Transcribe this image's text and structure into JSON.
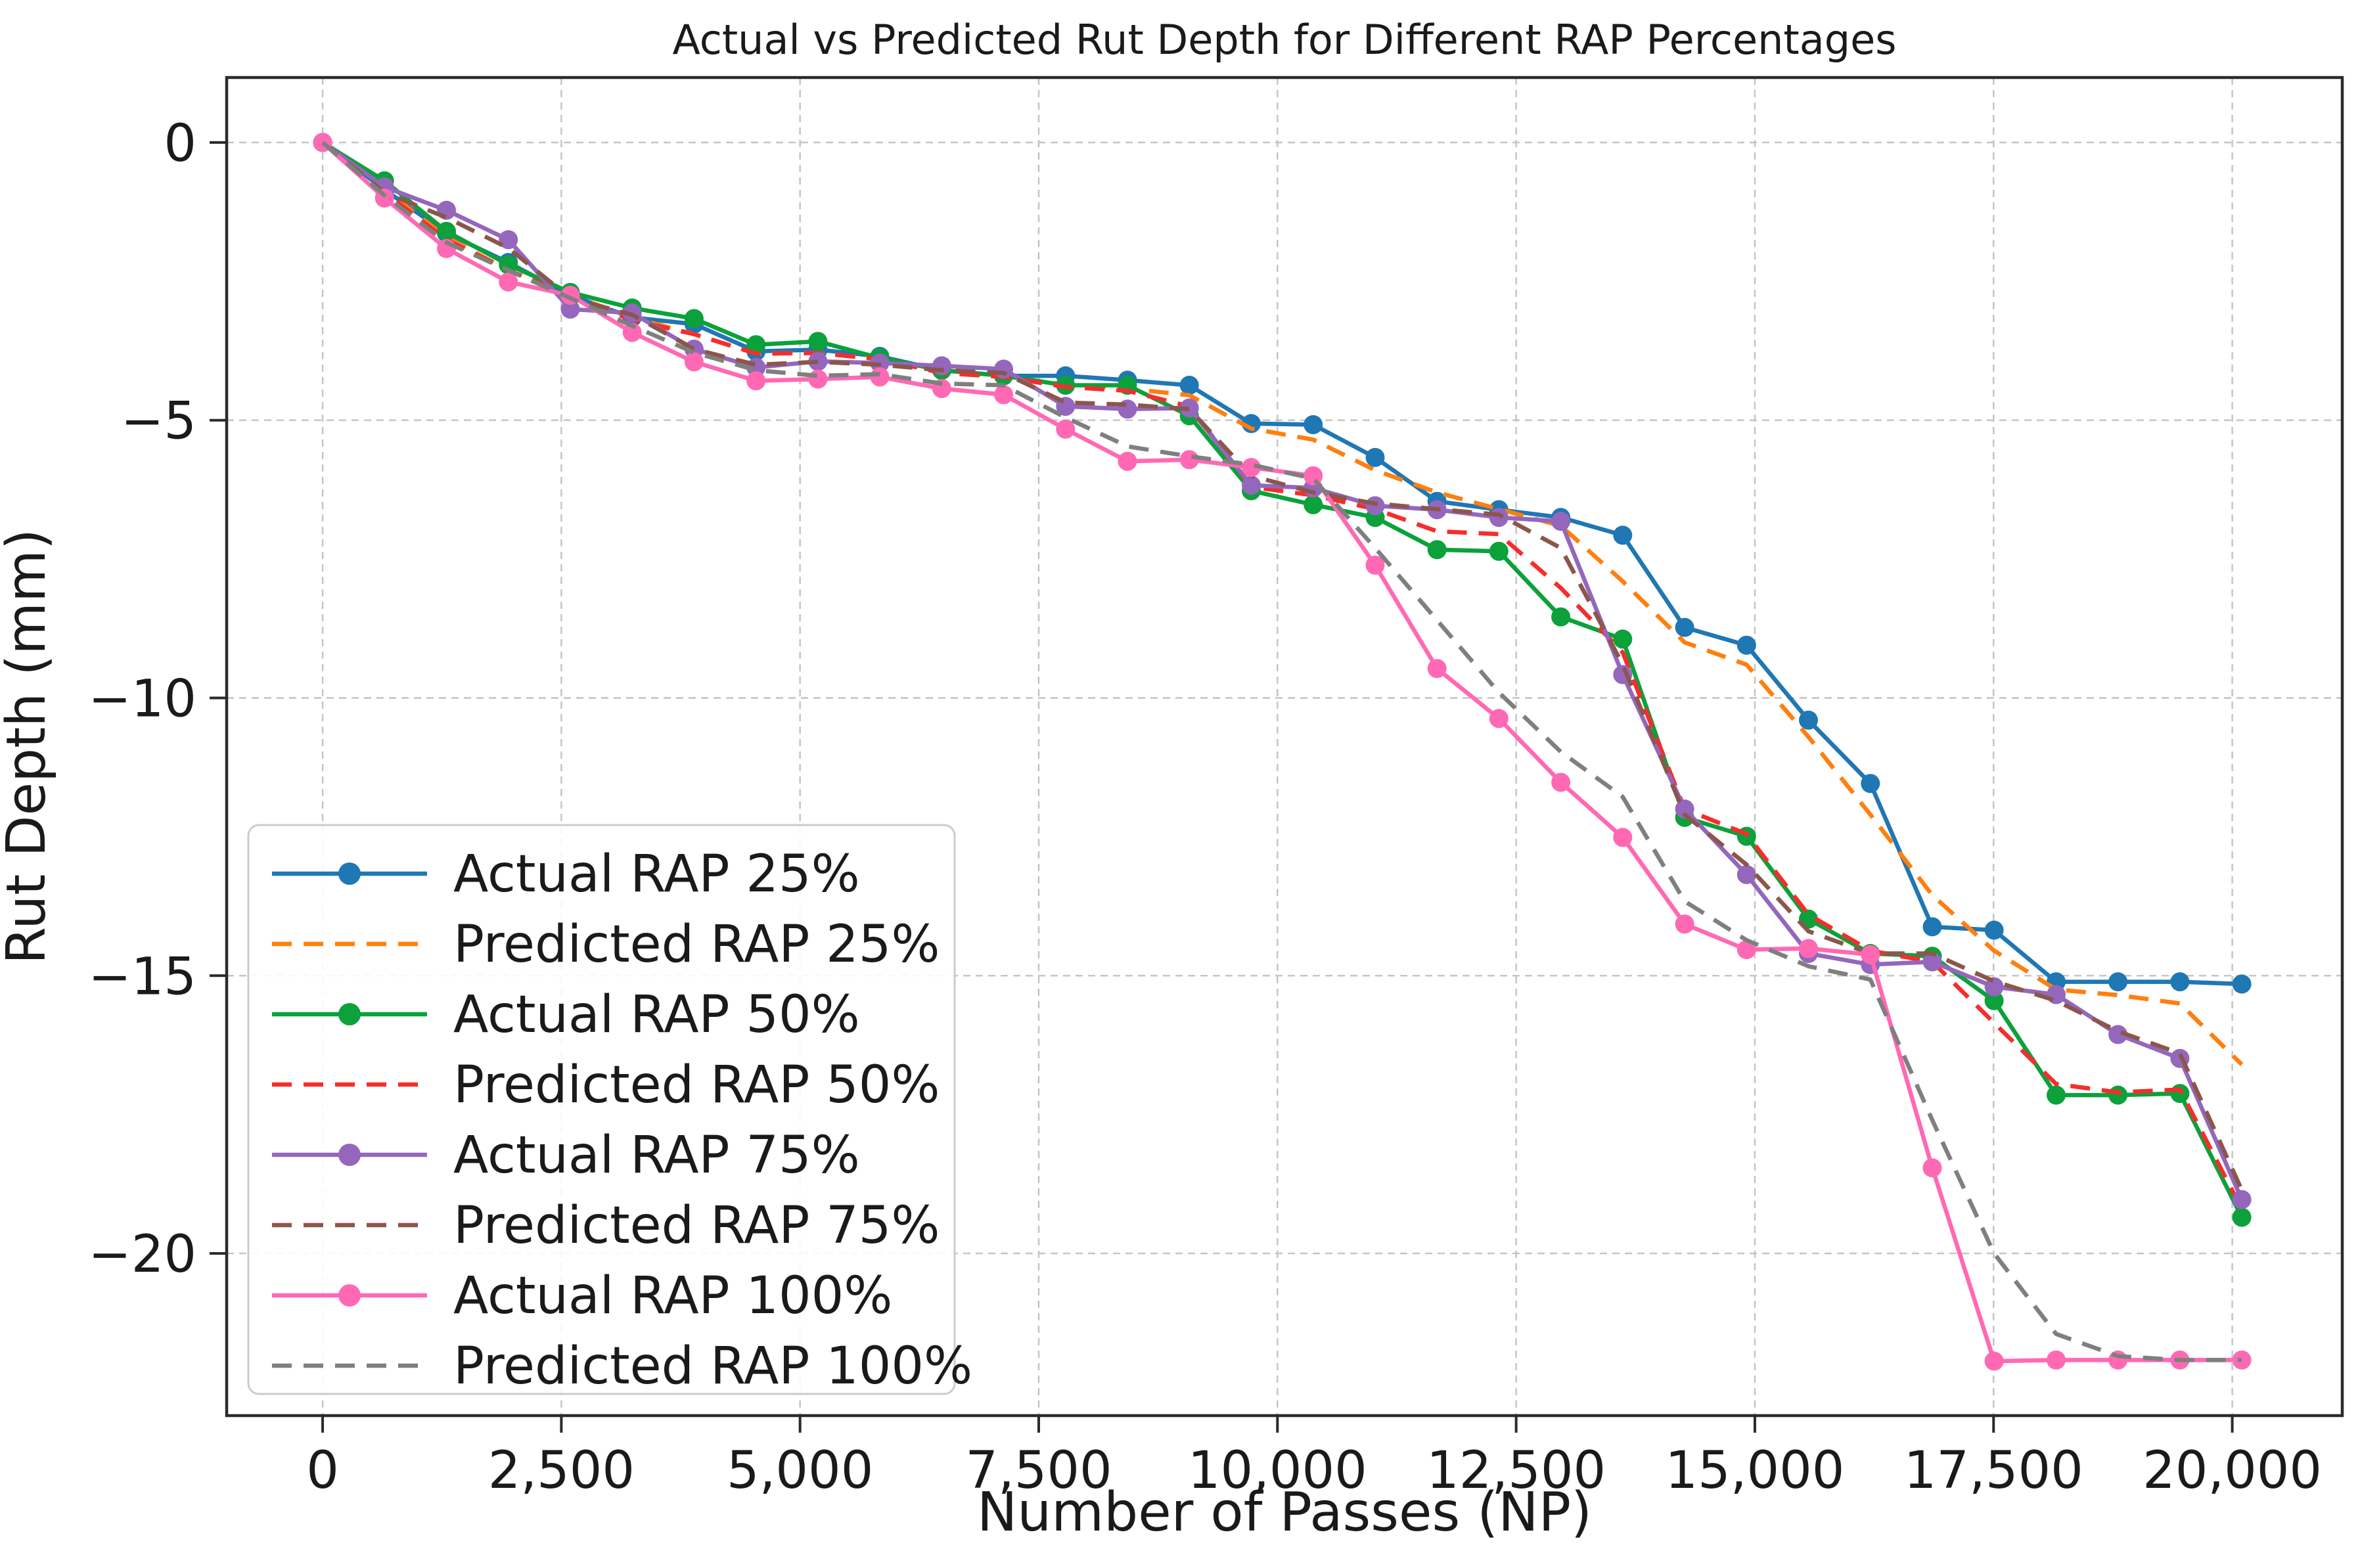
{
  "title": "Actual vs Predicted Rut Depth for Different RAP Percentages",
  "chart_data": {
    "type": "line",
    "title": "Actual vs Predicted Rut Depth for Different RAP Percentages",
    "xlabel": "Number of Passes (NP)",
    "ylabel": "Rut Depth (mm)",
    "xlim": [
      -1005,
      21152
    ],
    "ylim": [
      -22.92,
      1.17
    ],
    "grid": true,
    "grid_color": "#c3c3c3",
    "spine_color": "#2b2b2b",
    "legend_position": "lower left",
    "x_ticks": [
      {
        "value": 0,
        "label": "0"
      },
      {
        "value": 2500,
        "label": "2,500"
      },
      {
        "value": 5000,
        "label": "5,000"
      },
      {
        "value": 7500,
        "label": "7,500"
      },
      {
        "value": 10000,
        "label": "10,000"
      },
      {
        "value": 12500,
        "label": "12,500"
      },
      {
        "value": 15000,
        "label": "15,000"
      },
      {
        "value": 17500,
        "label": "17,500"
      },
      {
        "value": 20000,
        "label": "20,000"
      }
    ],
    "y_ticks": [
      {
        "value": 0,
        "label": "0"
      },
      {
        "value": -5,
        "label": "−5"
      },
      {
        "value": -10,
        "label": "−10"
      },
      {
        "value": -15,
        "label": "−15"
      },
      {
        "value": -20,
        "label": "−20"
      }
    ],
    "x": [
      0,
      648,
      1297,
      1945,
      2594,
      3242,
      3890,
      4539,
      5187,
      5835,
      6484,
      7132,
      7781,
      8429,
      9077,
      9726,
      10374,
      11023,
      11671,
      12319,
      12968,
      13616,
      14265,
      14913,
      15561,
      16210,
      16858,
      17506,
      18155,
      18803,
      19452,
      20100
    ],
    "series": [
      {
        "name": "Actual RAP 25%",
        "color": "#1f77b4",
        "style": "solid",
        "marker": true,
        "values": [
          0,
          -0.85,
          -1.63,
          -2.16,
          -2.75,
          -3.15,
          -3.27,
          -3.76,
          -3.73,
          -3.85,
          -4.1,
          -4.2,
          -4.2,
          -4.28,
          -4.37,
          -5.06,
          -5.08,
          -5.67,
          -6.46,
          -6.61,
          -6.75,
          -7.07,
          -8.73,
          -9.05,
          -10.4,
          -11.54,
          -14.12,
          -14.18,
          -15.11,
          -15.11,
          -15.11,
          -15.15
        ]
      },
      {
        "name": "Predicted RAP 25%",
        "color": "#ff7f0e",
        "style": "dashed",
        "marker": false,
        "values": [
          0,
          -0.85,
          -1.7,
          -2.3,
          -2.75,
          -3.15,
          -3.45,
          -3.8,
          -3.79,
          -3.9,
          -4.12,
          -4.22,
          -4.35,
          -4.43,
          -4.55,
          -5.15,
          -5.35,
          -5.9,
          -6.3,
          -6.6,
          -6.9,
          -7.9,
          -9.0,
          -9.4,
          -10.7,
          -12.1,
          -13.55,
          -14.55,
          -15.25,
          -15.35,
          -15.5,
          -16.6
        ]
      },
      {
        "name": "Actual RAP 50%",
        "color": "#0ca13a",
        "style": "solid",
        "marker": true,
        "values": [
          0,
          -0.69,
          -1.6,
          -2.2,
          -2.7,
          -2.98,
          -3.17,
          -3.64,
          -3.58,
          -3.88,
          -4.1,
          -4.2,
          -4.37,
          -4.37,
          -4.92,
          -6.27,
          -6.52,
          -6.75,
          -7.33,
          -7.36,
          -8.54,
          -8.94,
          -12.15,
          -12.49,
          -13.98,
          -14.6,
          -14.65,
          -15.45,
          -17.15,
          -17.15,
          -17.12,
          -19.35
        ]
      },
      {
        "name": "Predicted RAP 50%",
        "color": "#f52d2d",
        "style": "dashed",
        "marker": false,
        "values": [
          0,
          -0.9,
          -1.75,
          -2.3,
          -2.75,
          -3.2,
          -3.45,
          -3.8,
          -3.79,
          -3.9,
          -4.15,
          -4.22,
          -4.4,
          -4.47,
          -4.75,
          -6.2,
          -6.35,
          -6.6,
          -7.0,
          -7.05,
          -8.02,
          -9.18,
          -12.0,
          -12.45,
          -13.9,
          -14.55,
          -14.75,
          -15.85,
          -16.95,
          -17.1,
          -17.05,
          -19.2
        ]
      },
      {
        "name": "Actual RAP 75%",
        "color": "#9467bd",
        "style": "solid",
        "marker": true,
        "values": [
          0,
          -0.8,
          -1.22,
          -1.75,
          -3.0,
          -3.07,
          -3.72,
          -4.05,
          -3.94,
          -3.97,
          -4.02,
          -4.08,
          -4.75,
          -4.8,
          -4.78,
          -6.17,
          -6.22,
          -6.54,
          -6.61,
          -6.75,
          -6.82,
          -9.58,
          -12.0,
          -13.18,
          -14.6,
          -14.8,
          -14.75,
          -15.2,
          -15.34,
          -16.06,
          -16.49,
          -19.03
        ]
      },
      {
        "name": "Predicted RAP 75%",
        "color": "#8c564b",
        "style": "dashed",
        "marker": false,
        "values": [
          0,
          -0.9,
          -1.35,
          -1.9,
          -2.8,
          -3.1,
          -3.72,
          -4.0,
          -3.95,
          -4.0,
          -4.1,
          -4.15,
          -4.68,
          -4.72,
          -4.8,
          -6.0,
          -6.3,
          -6.5,
          -6.6,
          -6.7,
          -7.3,
          -9.4,
          -12.1,
          -13.0,
          -14.2,
          -14.6,
          -14.6,
          -15.1,
          -15.45,
          -16.0,
          -16.4,
          -18.86
        ]
      },
      {
        "name": "Actual RAP 100%",
        "color": "#ff69b4",
        "style": "solid",
        "marker": true,
        "values": [
          0,
          -1.0,
          -1.91,
          -2.51,
          -2.75,
          -3.42,
          -3.95,
          -4.29,
          -4.26,
          -4.22,
          -4.43,
          -4.54,
          -5.16,
          -5.74,
          -5.71,
          -5.85,
          -6.0,
          -7.61,
          -9.47,
          -10.37,
          -11.52,
          -12.51,
          -14.07,
          -14.53,
          -14.51,
          -14.62,
          -18.46,
          -21.94,
          -21.92,
          -21.92,
          -21.92,
          -21.92
        ]
      },
      {
        "name": "Predicted RAP 100%",
        "color": "#7f7f7f",
        "style": "dashed",
        "marker": false,
        "values": [
          0,
          -0.95,
          -1.8,
          -2.3,
          -2.8,
          -3.3,
          -3.78,
          -4.1,
          -4.2,
          -4.17,
          -4.34,
          -4.37,
          -4.95,
          -5.47,
          -5.65,
          -5.8,
          -6.05,
          -7.3,
          -8.6,
          -9.9,
          -10.97,
          -11.78,
          -13.66,
          -14.36,
          -14.83,
          -15.07,
          -17.6,
          -20.0,
          -21.45,
          -21.85,
          -21.92,
          -21.92
        ]
      }
    ]
  }
}
